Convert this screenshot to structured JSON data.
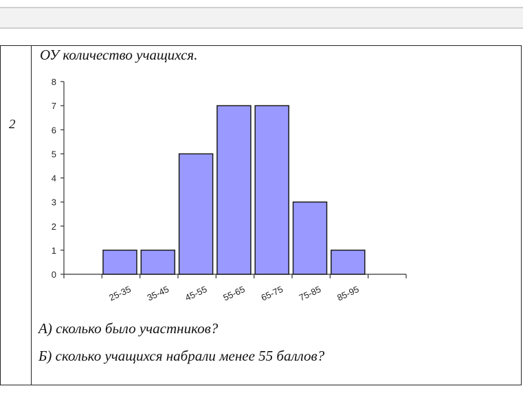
{
  "task": {
    "number": "2",
    "title": "ОУ количество учащихся.",
    "question_a": "А) сколько было участников?",
    "question_b": "Б) сколько учащихся набрали  менее  55 баллов?"
  },
  "chart_data": {
    "type": "bar",
    "title": "",
    "xlabel": "",
    "ylabel": "",
    "categories": [
      "25-35",
      "35-45",
      "45-55",
      "55-65",
      "65-75",
      "75-85",
      "85-95"
    ],
    "values": [
      1,
      1,
      5,
      7,
      7,
      3,
      1
    ],
    "ylim": [
      0,
      8
    ],
    "yticks": [
      0,
      1,
      2,
      3,
      4,
      5,
      6,
      7,
      8
    ],
    "grid": false,
    "colors": {
      "bar_fill": "#9999ff",
      "bar_stroke": "#1a1a1a",
      "axis": "#333333"
    }
  }
}
